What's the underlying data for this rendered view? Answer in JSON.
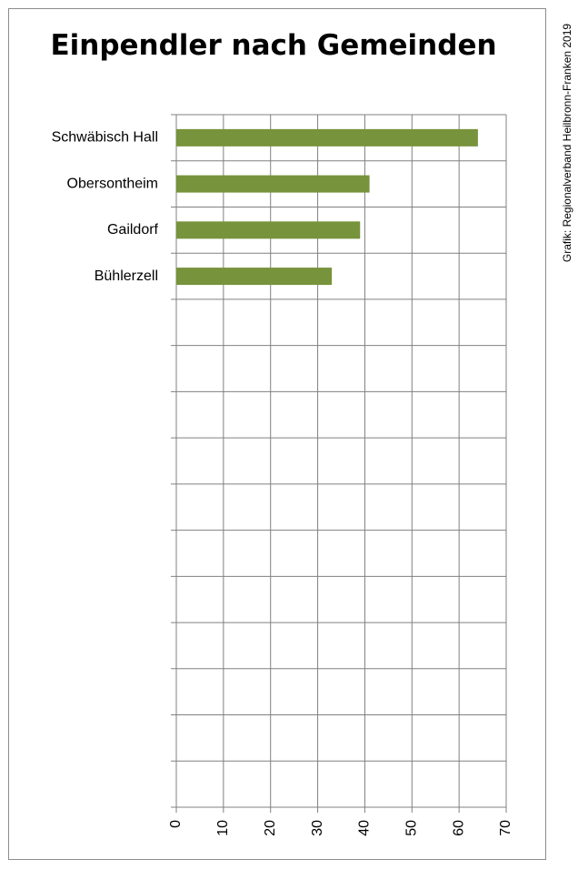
{
  "chart_data": {
    "type": "bar",
    "orientation": "horizontal",
    "title": "Einpendler nach Gemeinden",
    "categories": [
      "Schwäbisch Hall",
      "Obersontheim",
      "Gaildorf",
      "Bühlerzell"
    ],
    "values": [
      64,
      41,
      39,
      33
    ],
    "xlim": [
      0,
      70
    ],
    "ticks": [
      "0",
      "10",
      "20",
      "30",
      "40",
      "50",
      "60",
      "70"
    ],
    "grid": true,
    "bar_color": "#77933c",
    "xlabel": "",
    "ylabel": ""
  },
  "credit": "Grafik: Regionalverband Heilbronn-Franken 2019"
}
